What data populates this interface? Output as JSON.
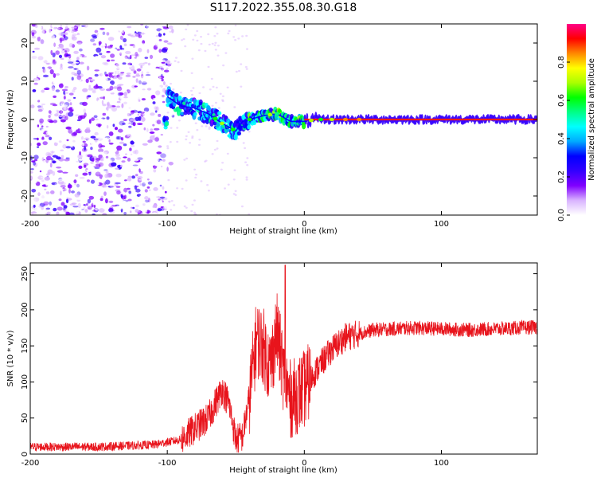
{
  "title": "S117.2022.355.08.30.G18",
  "chart_data": [
    {
      "type": "heatmap",
      "xlabel": "Height of straight line (km)",
      "ylabel": "Frequency (Hz)",
      "xlim": [
        -200,
        170
      ],
      "ylim": [
        -25,
        25
      ],
      "xticks": [
        "-200",
        "-100",
        "0",
        "100"
      ],
      "yticks": [
        "20",
        "10",
        "0",
        "-10",
        "-20"
      ],
      "colorbar": {
        "label": "Normalized spectral amplitude",
        "range": [
          0,
          1
        ],
        "ticks": [
          "0.0",
          "0.2",
          "0.4",
          "0.6",
          "0.8"
        ],
        "colormap": [
          "#ffffff",
          "#d9b3ff",
          "#8000ff",
          "#3300ff",
          "#0000ff",
          "#00aaff",
          "#00ffff",
          "#00ff88",
          "#00ff00",
          "#aaff00",
          "#ffff00",
          "#ff8800",
          "#ff0000",
          "#ff0088"
        ]
      },
      "ridge": [
        {
          "x": -100,
          "f": 6
        },
        {
          "x": -90,
          "f": 3.5
        },
        {
          "x": -80,
          "f": 3
        },
        {
          "x": -70,
          "f": 1.5
        },
        {
          "x": -60,
          "f": -1
        },
        {
          "x": -50,
          "f": -3
        },
        {
          "x": -45,
          "f": -0.5
        },
        {
          "x": -40,
          "f": 0
        },
        {
          "x": -30,
          "f": 1
        },
        {
          "x": -20,
          "f": 1.5
        },
        {
          "x": -10,
          "f": -0.5
        },
        {
          "x": 0,
          "f": -0.5
        },
        {
          "x": 10,
          "f": 0
        },
        {
          "x": 40,
          "f": 0
        },
        {
          "x": 100,
          "f": 0
        },
        {
          "x": 170,
          "f": 0
        }
      ]
    },
    {
      "type": "line",
      "xlabel": "Height of straight line (km)",
      "ylabel": "SNR (10 * v/v)",
      "xlim": [
        -200,
        170
      ],
      "ylim": [
        0,
        265
      ],
      "xticks": [
        "-200",
        "-100",
        "0",
        "100"
      ],
      "yticks": [
        "0",
        "50",
        "100",
        "150",
        "200",
        "250"
      ],
      "color": "#e8141c",
      "envelope": [
        {
          "x": -200,
          "y": 10
        },
        {
          "x": -150,
          "y": 10
        },
        {
          "x": -110,
          "y": 13
        },
        {
          "x": -90,
          "y": 20
        },
        {
          "x": -80,
          "y": 35
        },
        {
          "x": -70,
          "y": 50
        },
        {
          "x": -60,
          "y": 90
        },
        {
          "x": -55,
          "y": 70
        },
        {
          "x": -50,
          "y": 20
        },
        {
          "x": -45,
          "y": 25
        },
        {
          "x": -40,
          "y": 80
        },
        {
          "x": -35,
          "y": 160
        },
        {
          "x": -30,
          "y": 150
        },
        {
          "x": -25,
          "y": 120
        },
        {
          "x": -20,
          "y": 170
        },
        {
          "x": -15,
          "y": 110
        },
        {
          "x": -10,
          "y": 75
        },
        {
          "x": 0,
          "y": 90
        },
        {
          "x": 10,
          "y": 120
        },
        {
          "x": 20,
          "y": 145
        },
        {
          "x": 30,
          "y": 162
        },
        {
          "x": 50,
          "y": 172
        },
        {
          "x": 80,
          "y": 175
        },
        {
          "x": 120,
          "y": 172
        },
        {
          "x": 170,
          "y": 176
        }
      ],
      "max_point": {
        "x": -14,
        "y": 262
      }
    }
  ]
}
